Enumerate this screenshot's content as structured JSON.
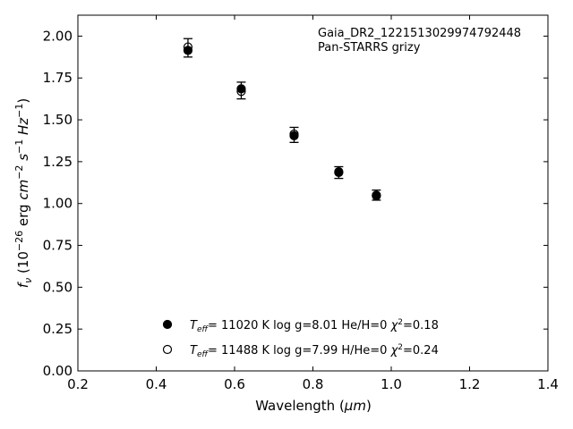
{
  "chart_data": {
    "type": "scatter",
    "xlabel_prefix": "Wavelength (",
    "xlabel_unit": "μm",
    "xlabel_suffix": ")",
    "ylabel_parts": [
      "f",
      "ν",
      " (10",
      "−26",
      " erg ",
      "cm",
      "−2",
      " s",
      "−1",
      " Hz",
      "−1",
      ")"
    ],
    "xlim": [
      0.2,
      1.4
    ],
    "ylim": [
      0.0,
      2.125
    ],
    "xticks": [
      0.2,
      0.4,
      0.6,
      0.8,
      1.0,
      1.2,
      1.4
    ],
    "xtick_labels": [
      "0.2",
      "0.4",
      "0.6",
      "0.8",
      "1.0",
      "1.2",
      "1.4"
    ],
    "yticks": [
      0.0,
      0.25,
      0.5,
      0.75,
      1.0,
      1.25,
      1.5,
      1.75,
      2.0
    ],
    "ytick_labels": [
      "0.00",
      "0.25",
      "0.50",
      "0.75",
      "1.00",
      "1.25",
      "1.50",
      "1.75",
      "2.00"
    ],
    "grid": false,
    "annotations": [
      "Gaia_DR2_1221513029974792448",
      "Pan-STARRS grizy"
    ],
    "observed": {
      "x": [
        0.481,
        0.617,
        0.752,
        0.866,
        0.962
      ],
      "y": [
        1.93,
        1.675,
        1.41,
        1.185,
        1.05
      ],
      "err": [
        0.055,
        0.05,
        0.045,
        0.035,
        0.03
      ]
    },
    "series": [
      {
        "name_parts": [
          "T",
          "eff",
          "= 11020 K  log g=8.01  He/H=0  ",
          "χ",
          "2",
          "=0.18"
        ],
        "marker": "filled",
        "x": [
          0.481,
          0.617,
          0.752,
          0.866,
          0.962
        ],
        "y": [
          1.915,
          1.685,
          1.405,
          1.19,
          1.045
        ]
      },
      {
        "name_parts": [
          "T",
          "eff",
          "= 11488 K  log g=7.99  H/He=0  ",
          "χ",
          "2",
          "=0.24"
        ],
        "marker": "open",
        "x": [
          0.481,
          0.617,
          0.752,
          0.866,
          0.962
        ],
        "y": [
          1.935,
          1.67,
          1.415,
          1.185,
          1.05
        ]
      }
    ]
  }
}
